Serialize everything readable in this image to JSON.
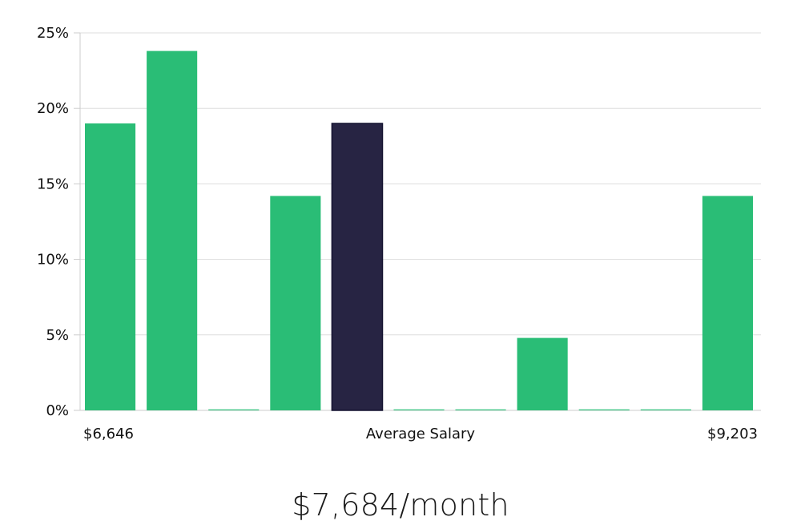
{
  "headline": "$7,684/month",
  "chart_data": {
    "type": "bar",
    "categories": [
      "b1",
      "b2",
      "b3",
      "b4",
      "b5",
      "b6",
      "b7",
      "b8",
      "b9",
      "b10",
      "b11"
    ],
    "values": [
      19,
      23.8,
      0,
      14.2,
      19,
      0,
      0,
      4.8,
      0,
      0,
      14.2
    ],
    "highlight_index": 4,
    "ylim": [
      0,
      25
    ],
    "yticks": [
      0,
      5,
      10,
      15,
      20,
      25
    ],
    "ytick_labels": [
      "0%",
      "5%",
      "10%",
      "15%",
      "20%",
      "25%"
    ],
    "xlabel_left": "$6,646",
    "xlabel_center": "Average Salary",
    "xlabel_right": "$9,203",
    "grid": true,
    "colors": {
      "bar": "#2abd76",
      "highlight": "#272443",
      "grid": "#dddddd",
      "axis": "#cccccc"
    }
  }
}
